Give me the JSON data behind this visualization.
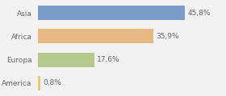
{
  "categories": [
    "America",
    "Europa",
    "Africa",
    "Asia"
  ],
  "values": [
    0.8,
    17.6,
    35.9,
    45.8
  ],
  "labels": [
    "0,8%",
    "17,6%",
    "35,9%",
    "45,8%"
  ],
  "colors": [
    "#e8c97a",
    "#b5c98a",
    "#e8b882",
    "#7a9ec9"
  ],
  "background_color": "#f2f2f2",
  "xlim": [
    0,
    58
  ],
  "label_fontsize": 6.5,
  "tick_fontsize": 6.5,
  "bar_height": 0.62
}
